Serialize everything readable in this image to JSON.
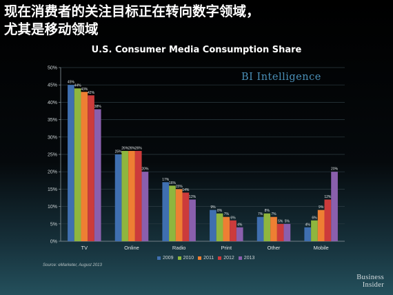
{
  "headline": {
    "line1": "现在消费者的关注目标正在转向数字领域，",
    "line2": "尤其是移动领域"
  },
  "brand": "BI Intelligence",
  "source": "Source: eMarketer, August 2013",
  "footer_logo": {
    "line1": "Business",
    "line2": "Insider"
  },
  "colors": {
    "2009": "#3f6fb0",
    "2010": "#8fb63e",
    "2011": "#ee7f33",
    "2012": "#cc3b3b",
    "2013": "#8a5fad",
    "brand": "#4a8fb7"
  },
  "chart_data": {
    "type": "bar",
    "title": "U.S. Consumer Media Consumption Share",
    "categories": [
      "TV",
      "Online",
      "Radio",
      "Print",
      "Other",
      "Mobile"
    ],
    "series": [
      {
        "name": "2009",
        "values": [
          45,
          25,
          17,
          9,
          7,
          4
        ],
        "labels": [
          "45%",
          "25%",
          "17%",
          "9%",
          "7%",
          "4%"
        ]
      },
      {
        "name": "2010",
        "values": [
          44,
          26,
          16,
          8,
          8,
          6
        ],
        "labels": [
          "44%",
          "26%",
          "16%",
          "8%",
          "8%",
          "6%"
        ]
      },
      {
        "name": "2011",
        "values": [
          43,
          26,
          15,
          7,
          7,
          9
        ],
        "labels": [
          "43%",
          "26%",
          "15%",
          "7%",
          "7%",
          "9%"
        ]
      },
      {
        "name": "2012",
        "values": [
          42,
          26,
          14,
          6,
          5,
          12
        ],
        "labels": [
          "42%",
          "26%",
          "14%",
          "6%",
          "5%",
          "12%"
        ]
      },
      {
        "name": "2013",
        "values": [
          38,
          20,
          12,
          4,
          5,
          20
        ],
        "labels": [
          "38%",
          "20%",
          "12%",
          "4%",
          "5%",
          "20%"
        ]
      }
    ],
    "yticks": [
      "0%",
      "5%",
      "10%",
      "15%",
      "20%",
      "25%",
      "30%",
      "35%",
      "40%",
      "45%",
      "50%"
    ],
    "ylim": [
      0,
      50
    ],
    "grid": true,
    "legend": "bottom"
  }
}
